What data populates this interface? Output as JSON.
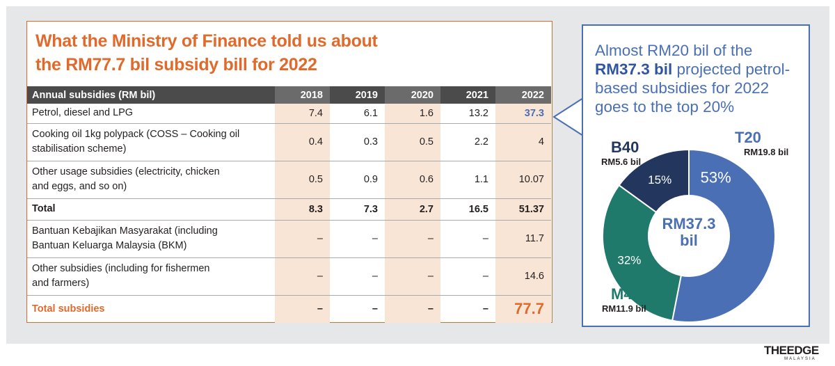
{
  "title_line1": "What the Ministry of Finance told us about",
  "title_line2": "the RM77.7 bil subsidy bill for 2022",
  "table": {
    "header": [
      "Annual subsidies (RM bil)",
      "2018",
      "2019",
      "2020",
      "2021",
      "2022"
    ],
    "rows": [
      {
        "label": [
          "Petrol, diesel and LPG"
        ],
        "values": [
          "7.4",
          "6.1",
          "1.6",
          "13.2",
          "37.3"
        ]
      },
      {
        "label": [
          "Cooking oil 1kg polypack (COSS – Cooking oil",
          "stabilisation scheme)"
        ],
        "values": [
          "0.4",
          "0.3",
          "0.5",
          "2.2",
          "4"
        ]
      },
      {
        "label": [
          "Other usage subsidies (electricity, chicken",
          "and eggs, and so on)"
        ],
        "values": [
          "0.5",
          "0.9",
          "0.6",
          "1.1",
          "10.07"
        ]
      },
      {
        "label": [
          "Total"
        ],
        "values": [
          "8.3",
          "7.3",
          "2.7",
          "16.5",
          "51.37"
        ]
      },
      {
        "label": [
          "Bantuan Kebajikan Masyarakat (including",
          "Bantuan Keluarga Malaysia (BKM)"
        ],
        "values": [
          "–",
          "–",
          "–",
          "–",
          "11.7"
        ]
      },
      {
        "label": [
          "Other subsidies (including for fishermen",
          "and farmers)"
        ],
        "values": [
          "–",
          "–",
          "–",
          "–",
          "14.6"
        ]
      },
      {
        "label": [
          "Total subsidies"
        ],
        "values": [
          "–",
          "–",
          "–",
          "–",
          "77.7"
        ]
      }
    ]
  },
  "callout": {
    "part1": "Almost RM20 bil of the",
    "bold": "RM37.3 bil",
    "part2": "projected petrol-based subsidies for 2022 goes to the top 20%"
  },
  "chart_data": {
    "type": "pie",
    "center_label": [
      "RM37.3",
      "bil"
    ],
    "slices": [
      {
        "name": "T20",
        "amount": "RM19.8 bil",
        "value": 19.8,
        "percent": "53%",
        "color": "#4a6fb5"
      },
      {
        "name": "M40",
        "amount": "RM11.9 bil",
        "value": 11.9,
        "percent": "32%",
        "color": "#1f7a6b"
      },
      {
        "name": "B40",
        "amount": "RM5.6 bil",
        "value": 5.6,
        "percent": "15%",
        "color": "#23365e"
      }
    ]
  },
  "logo": {
    "main": "THEEDGE",
    "sub": "MALAYSIA"
  }
}
